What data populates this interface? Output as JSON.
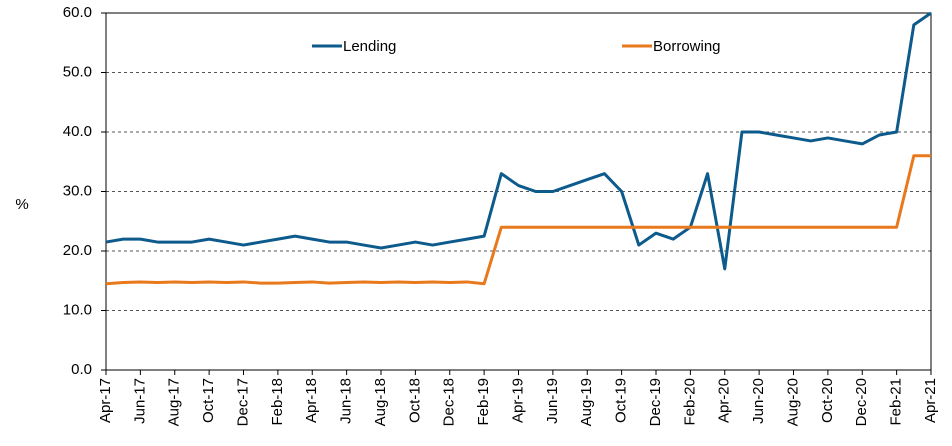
{
  "chart_data": {
    "type": "line",
    "y_label": "%",
    "categories": [
      "Apr-17",
      null,
      "Jun-17",
      null,
      "Aug-17",
      null,
      "Oct-17",
      null,
      "Dec-17",
      null,
      "Feb-18",
      null,
      "Apr-18",
      null,
      "Jun-18",
      null,
      "Aug-18",
      null,
      "Oct-18",
      null,
      "Dec-18",
      null,
      "Feb-19",
      null,
      "Apr-19",
      null,
      "Jun-19",
      null,
      "Aug-19",
      null,
      "Oct-19",
      null,
      "Dec-19",
      null,
      "Feb-20",
      null,
      "Apr-20",
      null,
      "Jun-20",
      null,
      "Aug-20",
      null,
      "Oct-20",
      null,
      "Dec-20",
      null,
      "Feb-21",
      null,
      "Apr-21"
    ],
    "series": [
      {
        "name": "Lending",
        "color": "#0d5a8c",
        "values": [
          21.5,
          22,
          22,
          21.5,
          21.5,
          21.5,
          22,
          21.5,
          21,
          21.5,
          22,
          22.5,
          22,
          21.5,
          21.5,
          21,
          20.5,
          21,
          21.5,
          21,
          21.5,
          22,
          22.5,
          33,
          31,
          30,
          30,
          31,
          32,
          33,
          30,
          21,
          23,
          22,
          24,
          33,
          17,
          40,
          40,
          39.5,
          39,
          38.5,
          39,
          38.5,
          38,
          39.5,
          40,
          58,
          60
        ]
      },
      {
        "name": "Borrowing",
        "color": "#e8791d",
        "values": [
          14.5,
          14.7,
          14.8,
          14.7,
          14.8,
          14.7,
          14.8,
          14.7,
          14.8,
          14.6,
          14.6,
          14.7,
          14.8,
          14.6,
          14.7,
          14.8,
          14.7,
          14.8,
          14.7,
          14.8,
          14.7,
          14.8,
          14.5,
          24,
          24,
          24,
          24,
          24,
          24,
          24,
          24,
          24,
          24,
          24,
          24,
          24,
          24,
          24,
          24,
          24,
          24,
          24,
          24,
          24,
          24,
          24,
          24,
          36,
          36
        ]
      }
    ],
    "ylim": [
      0,
      60
    ],
    "yticks": [
      {
        "value": 0,
        "label": "0.0"
      },
      {
        "value": 10,
        "label": "10.0"
      },
      {
        "value": 20,
        "label": "20.0"
      },
      {
        "value": 30,
        "label": "30.0"
      },
      {
        "value": 40,
        "label": "40.0"
      },
      {
        "value": 50,
        "label": "50.0"
      },
      {
        "value": 60,
        "label": "60.0"
      }
    ],
    "grid": true
  }
}
